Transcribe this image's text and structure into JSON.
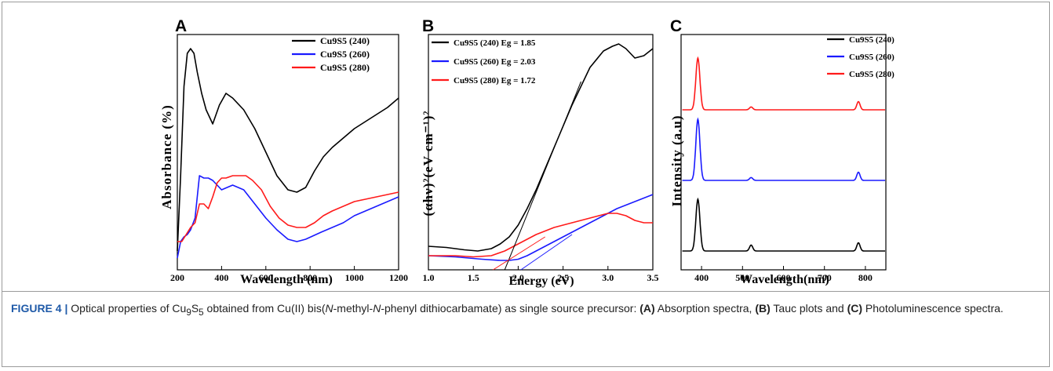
{
  "panels": {
    "A": {
      "letter": "A",
      "ylabel": "Absorbance (%)",
      "xlabel": "Wavelength (nm)"
    },
    "B": {
      "letter": "B",
      "ylabel": "(αhν)²(eV cm⁻¹)²",
      "xlabel": "Energy (eV)"
    },
    "C": {
      "letter": "C",
      "ylabel": "Intensity (a.u)",
      "xlabel": "Wavelength(nm)"
    }
  },
  "caption": {
    "fig_label": "FIGURE 4 |",
    "text_1": " Optical properties of Cu",
    "sub_1": "9",
    "text_2": "S",
    "sub_2": "5",
    "text_3": " obtained from Cu(II) bis(",
    "ital_1": "N",
    "text_4": "-methyl-",
    "ital_2": "N",
    "text_5": "-phenyl dithiocarbamate) as single source precursor: ",
    "bold_a": "(A)",
    "text_6": " Absorption spectra, ",
    "bold_b": "(B)",
    "text_7": " Tauc plots and ",
    "bold_c": "(C)",
    "text_8": " Photoluminescence spectra."
  },
  "colors": {
    "s240": "#000000",
    "s260": "#1a1aff",
    "s280": "#ff1a1a"
  },
  "chart_data": [
    {
      "id": "A",
      "type": "line",
      "xlabel": "Wavelength (nm)",
      "ylabel": "Absorbance (%)",
      "xlim": [
        200,
        1200
      ],
      "ylim": [
        0,
        100
      ],
      "xticks": [
        "200",
        "400",
        "600",
        "800",
        "1000",
        "1200"
      ],
      "yticks_shown": false,
      "legend_position": "top-right",
      "series": [
        {
          "name": "Cu9S5 (240)",
          "color": "#000000",
          "x": [
            200,
            215,
            230,
            245,
            260,
            275,
            290,
            310,
            330,
            360,
            390,
            420,
            450,
            500,
            550,
            600,
            650,
            700,
            740,
            780,
            820,
            860,
            900,
            950,
            1000,
            1050,
            1100,
            1150,
            1200
          ],
          "y": [
            8,
            40,
            78,
            92,
            94,
            92,
            84,
            75,
            68,
            62,
            70,
            75,
            73,
            68,
            60,
            50,
            40,
            34,
            33,
            35,
            42,
            48,
            52,
            56,
            60,
            63,
            66,
            69,
            73
          ]
        },
        {
          "name": "Cu9S5 (260)",
          "color": "#1a1aff",
          "x": [
            200,
            215,
            230,
            245,
            260,
            280,
            300,
            320,
            340,
            360,
            400,
            450,
            500,
            550,
            600,
            650,
            700,
            740,
            780,
            850,
            900,
            950,
            1000,
            1050,
            1100,
            1150,
            1200
          ],
          "y": [
            5,
            12,
            14,
            15,
            17,
            22,
            40,
            39,
            39,
            38,
            34,
            36,
            34,
            28,
            22,
            17,
            13,
            12,
            13,
            16,
            18,
            20,
            23,
            25,
            27,
            29,
            31
          ]
        },
        {
          "name": "Cu9S5 (280)",
          "color": "#ff1a1a",
          "x": [
            200,
            220,
            240,
            260,
            280,
            300,
            320,
            340,
            360,
            380,
            400,
            420,
            450,
            480,
            510,
            540,
            580,
            620,
            660,
            700,
            740,
            780,
            820,
            860,
            900,
            950,
            1000,
            1050,
            1100,
            1150,
            1200
          ],
          "y": [
            12,
            12,
            15,
            18,
            20,
            28,
            28,
            26,
            31,
            37,
            39,
            39,
            40,
            40,
            40,
            38,
            34,
            27,
            22,
            19,
            18,
            18,
            20,
            23,
            25,
            27,
            29,
            30,
            31,
            32,
            33
          ]
        }
      ]
    },
    {
      "id": "B",
      "type": "line",
      "xlabel": "Energy (eV)",
      "ylabel": "(αhν)²(eV cm⁻¹)²",
      "xlim": [
        1.0,
        3.5
      ],
      "ylim": [
        0,
        100
      ],
      "xticks": [
        "1.0",
        "1.5",
        "2.0",
        "2.5",
        "3.0",
        "3.5"
      ],
      "yticks_shown": false,
      "legend_position": "top-left",
      "series": [
        {
          "name": "Cu9S5 (240) Eg = 1.85",
          "color": "#000000",
          "x": [
            1.0,
            1.2,
            1.4,
            1.55,
            1.7,
            1.8,
            1.9,
            2.0,
            2.1,
            2.2,
            2.4,
            2.6,
            2.8,
            2.95,
            3.05,
            3.12,
            3.2,
            3.3,
            3.4,
            3.5
          ],
          "y": [
            10,
            9.5,
            8.5,
            8,
            9,
            11,
            14,
            19,
            26,
            34,
            52,
            70,
            86,
            93,
            95,
            96,
            94,
            90,
            91,
            94
          ]
        },
        {
          "name": "Cu9S5 (260) Eg = 2.03",
          "color": "#1a1aff",
          "x": [
            1.0,
            1.3,
            1.6,
            1.8,
            1.9,
            2.0,
            2.1,
            2.3,
            2.5,
            2.7,
            2.9,
            3.1,
            3.3,
            3.5
          ],
          "y": [
            6,
            5.5,
            4.5,
            4,
            4,
            4.5,
            6,
            10,
            14,
            18,
            22,
            26,
            29,
            32
          ]
        },
        {
          "name": "Cu9S5 (280) Eg = 1.72",
          "color": "#ff1a1a",
          "x": [
            1.0,
            1.3,
            1.5,
            1.7,
            1.85,
            2.0,
            2.2,
            2.4,
            2.6,
            2.8,
            3.0,
            3.1,
            3.2,
            3.3,
            3.4,
            3.5
          ],
          "y": [
            6,
            6,
            5.5,
            6,
            8,
            11,
            15,
            18,
            20,
            22,
            24,
            24,
            23,
            21,
            20,
            20
          ]
        }
      ]
    },
    {
      "id": "C",
      "type": "line",
      "xlabel": "Wavelength(nm)",
      "ylabel": "Intensity (a.u)",
      "xlim": [
        350,
        850
      ],
      "ylim": [
        0,
        100
      ],
      "xticks": [
        "400",
        "500",
        "600",
        "700",
        "800"
      ],
      "yticks_shown": false,
      "legend_position": "top-left",
      "stacked_offset": true,
      "series": [
        {
          "name": "Cu9S5 (240)",
          "color": "#000000",
          "baseline": 8,
          "peaks": [
            [
              391,
              22
            ],
            [
              521,
              2.5
            ],
            [
              783,
              3.5
            ]
          ]
        },
        {
          "name": "Cu9S5 (260)",
          "color": "#1a1aff",
          "baseline": 38,
          "peaks": [
            [
              391,
              26
            ],
            [
              521,
              1.2
            ],
            [
              783,
              3.5
            ]
          ]
        },
        {
          "name": "Cu9S5 (280)",
          "color": "#ff1a1a",
          "baseline": 68,
          "peaks": [
            [
              391,
              22
            ],
            [
              521,
              1.2
            ],
            [
              783,
              3.5
            ]
          ]
        }
      ]
    }
  ]
}
